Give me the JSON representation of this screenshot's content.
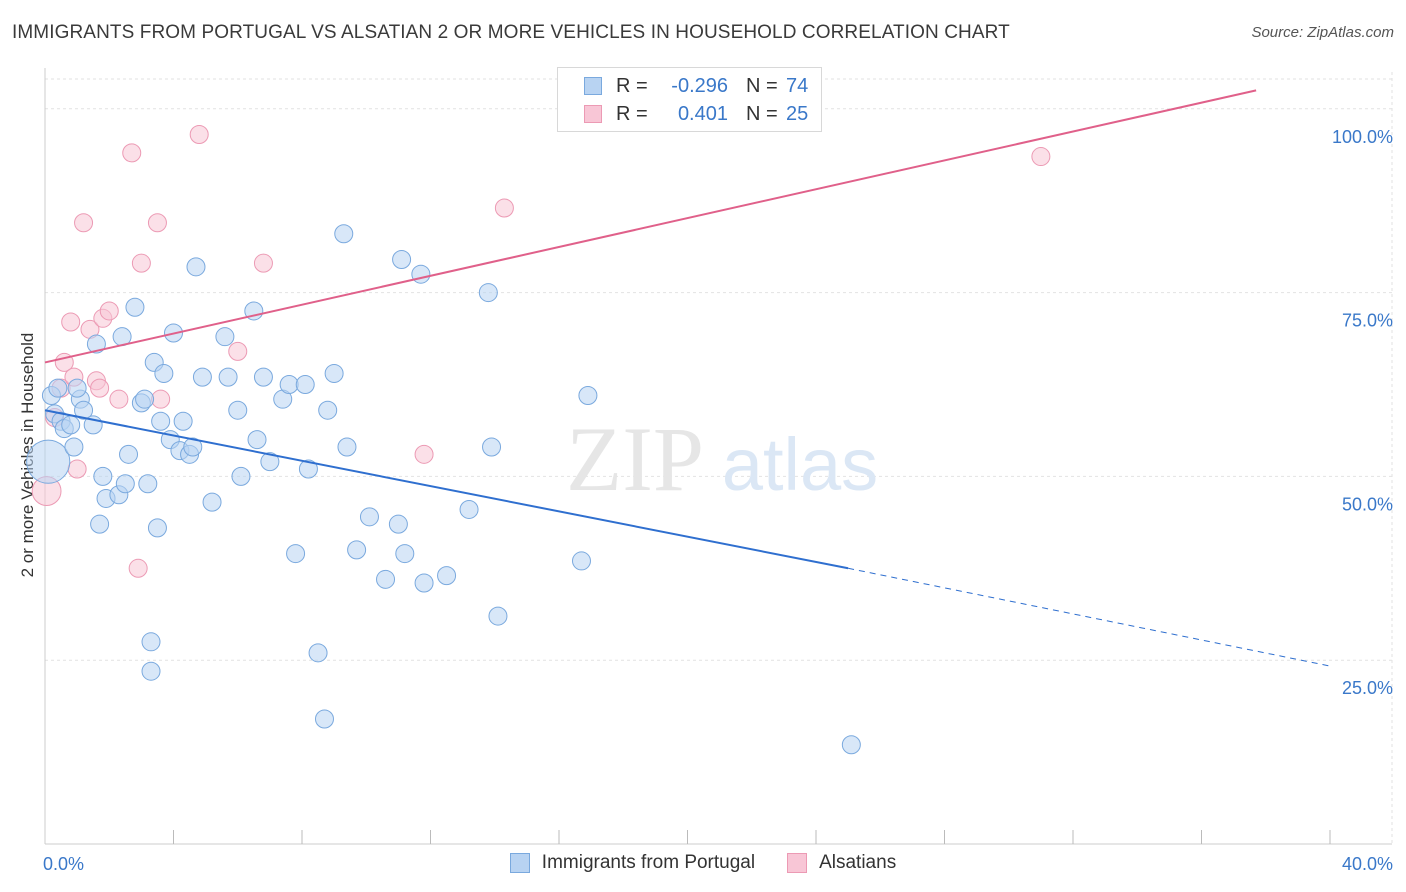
{
  "title": "IMMIGRANTS FROM PORTUGAL VS ALSATIAN 2 OR MORE VEHICLES IN HOUSEHOLD CORRELATION CHART",
  "source": "Source: ZipAtlas.com",
  "watermark": {
    "zip": "ZIP",
    "atlas": "atlas"
  },
  "colors": {
    "blue_fill": "#b8d3f2",
    "blue_stroke": "#7aa9de",
    "blue_line": "#2f6fcf",
    "pink_fill": "#f8c6d6",
    "pink_stroke": "#ec9ab4",
    "pink_line": "#e0608a",
    "axis_text": "#3a78c9",
    "grid": "#e2e2e2"
  },
  "legend": {
    "series1": {
      "r_label": "R =",
      "r_value": "-0.296",
      "n_label": "N =",
      "n_value": "74"
    },
    "series2": {
      "r_label": "R =",
      "r_value": "0.401",
      "n_label": "N =",
      "n_value": "25"
    }
  },
  "chart_data": {
    "type": "scatter",
    "title": "IMMIGRANTS FROM PORTUGAL VS ALSATIAN 2 OR MORE VEHICLES IN HOUSEHOLD CORRELATION CHART",
    "xlabel": "",
    "ylabel": "2 or more Vehicles in Household",
    "xlim": [
      0,
      40
    ],
    "ylim": [
      0,
      105
    ],
    "x_tick_labels": [
      "0.0%",
      "40.0%"
    ],
    "y_ticks": [
      25,
      50,
      75,
      100
    ],
    "y_tick_labels": [
      "25.0%",
      "50.0%",
      "75.0%",
      "100.0%"
    ],
    "grid": true,
    "legend_position": "top-center",
    "series": [
      {
        "name": "Immigrants from Portugal",
        "color": "#b8d3f2",
        "points": [
          [
            0.1,
            52,
            2.4
          ],
          [
            0.3,
            58.5,
            1
          ],
          [
            0.2,
            61,
            1
          ],
          [
            0.5,
            57.5,
            1
          ],
          [
            0.4,
            62,
            1
          ],
          [
            0.6,
            56.5,
            1
          ],
          [
            0.8,
            57,
            1
          ],
          [
            0.9,
            54,
            1
          ],
          [
            1.1,
            60.5,
            1
          ],
          [
            1.2,
            59,
            1
          ],
          [
            1.5,
            57,
            1
          ],
          [
            1.6,
            68,
            1
          ],
          [
            1.0,
            62,
            1
          ],
          [
            1.8,
            50,
            1
          ],
          [
            1.7,
            43.5,
            1
          ],
          [
            1.9,
            47,
            1
          ],
          [
            2.3,
            47.5,
            1
          ],
          [
            2.4,
            69,
            1
          ],
          [
            2.5,
            49,
            1
          ],
          [
            2.6,
            53,
            1
          ],
          [
            2.8,
            73,
            1
          ],
          [
            3.0,
            60,
            1
          ],
          [
            3.1,
            60.5,
            1
          ],
          [
            3.2,
            49,
            1
          ],
          [
            3.4,
            65.5,
            1
          ],
          [
            3.5,
            43,
            1
          ],
          [
            3.6,
            57.5,
            1
          ],
          [
            3.7,
            64,
            1
          ],
          [
            3.9,
            55,
            1
          ],
          [
            4.0,
            69.5,
            1
          ],
          [
            4.2,
            53.5,
            1
          ],
          [
            4.3,
            57.5,
            1
          ],
          [
            4.5,
            53,
            1
          ],
          [
            4.6,
            54,
            1
          ],
          [
            4.7,
            78.5,
            1
          ],
          [
            4.9,
            63.5,
            1
          ],
          [
            5.2,
            46.5,
            1
          ],
          [
            5.6,
            69,
            1
          ],
          [
            5.7,
            63.5,
            1
          ],
          [
            6.0,
            59,
            1
          ],
          [
            6.1,
            50,
            1
          ],
          [
            6.5,
            72.5,
            1
          ],
          [
            6.6,
            55,
            1
          ],
          [
            6.8,
            63.5,
            1
          ],
          [
            7.0,
            52,
            1
          ],
          [
            7.4,
            60.5,
            1
          ],
          [
            7.6,
            62.5,
            1
          ],
          [
            7.8,
            39.5,
            1
          ],
          [
            8.1,
            62.5,
            1
          ],
          [
            8.2,
            51,
            1
          ],
          [
            8.5,
            26,
            1
          ],
          [
            8.7,
            17,
            1
          ],
          [
            8.8,
            59,
            1
          ],
          [
            9.0,
            64,
            1
          ],
          [
            9.3,
            83,
            1
          ],
          [
            9.4,
            54,
            1
          ],
          [
            9.7,
            40,
            1
          ],
          [
            10.1,
            44.5,
            1
          ],
          [
            10.6,
            36,
            1
          ],
          [
            11.0,
            43.5,
            1
          ],
          [
            11.1,
            79.5,
            1
          ],
          [
            11.2,
            39.5,
            1
          ],
          [
            11.7,
            77.5,
            1
          ],
          [
            11.8,
            35.5,
            1
          ],
          [
            12.5,
            36.5,
            1
          ],
          [
            13.2,
            45.5,
            1
          ],
          [
            13.8,
            75,
            1
          ],
          [
            13.9,
            54,
            1
          ],
          [
            14.1,
            31,
            1
          ],
          [
            16.7,
            38.5,
            1
          ],
          [
            16.9,
            61,
            1
          ],
          [
            3.3,
            27.5,
            1
          ],
          [
            3.3,
            23.5,
            1
          ],
          [
            25.1,
            13.5,
            1
          ]
        ]
      },
      {
        "name": "Alsatians",
        "color": "#f8c6d6",
        "points": [
          [
            0.05,
            48,
            1.6
          ],
          [
            0.3,
            58,
            1
          ],
          [
            0.5,
            62,
            1
          ],
          [
            0.6,
            65.5,
            1
          ],
          [
            0.8,
            71,
            1
          ],
          [
            0.9,
            63.5,
            1
          ],
          [
            1.0,
            51,
            1
          ],
          [
            1.2,
            84.5,
            1
          ],
          [
            1.4,
            70,
            1
          ],
          [
            1.6,
            63,
            1
          ],
          [
            1.7,
            62,
            1
          ],
          [
            1.8,
            71.5,
            1
          ],
          [
            2.0,
            72.5,
            1
          ],
          [
            2.3,
            60.5,
            1
          ],
          [
            2.7,
            94,
            1
          ],
          [
            2.9,
            37.5,
            1
          ],
          [
            3.0,
            79,
            1
          ],
          [
            3.5,
            84.5,
            1
          ],
          [
            3.6,
            60.5,
            1
          ],
          [
            4.8,
            96.5,
            1
          ],
          [
            6.0,
            67,
            1
          ],
          [
            6.8,
            79,
            1
          ],
          [
            11.8,
            53,
            1
          ],
          [
            14.3,
            86.5,
            1
          ],
          [
            31.0,
            93.5,
            1
          ]
        ]
      }
    ],
    "trendlines": [
      {
        "series": "Immigrants from Portugal",
        "x1": 0,
        "y1": 59,
        "x2": 25,
        "y2": 37.5,
        "dash_to_x": 40,
        "dash_to_y": 24.2
      },
      {
        "series": "Alsatians",
        "x1": 0,
        "y1": 65.5,
        "x2": 37.7,
        "y2": 102.5
      }
    ]
  },
  "bottom_legend": [
    {
      "label": "Immigrants from Portugal",
      "swatch": "blue"
    },
    {
      "label": "Alsatians",
      "swatch": "pink"
    }
  ]
}
